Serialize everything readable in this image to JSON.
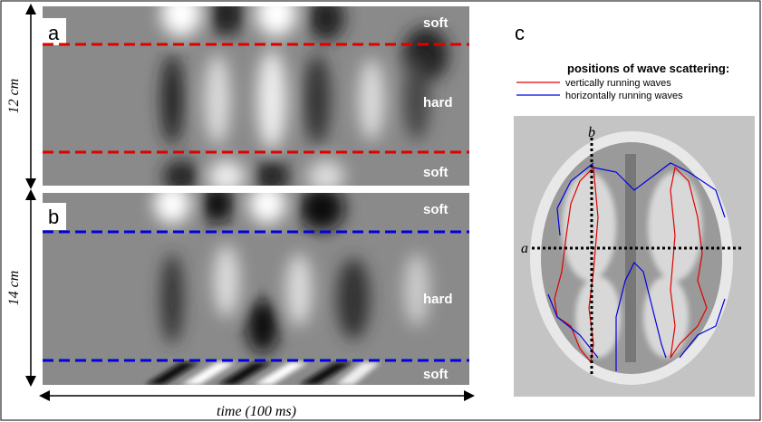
{
  "panels": [
    {
      "label": "a",
      "size_label": "12 cm",
      "regions": [
        "soft",
        "hard",
        "soft"
      ]
    },
    {
      "label": "b",
      "size_label": "14 cm",
      "regions": [
        "soft",
        "hard",
        "soft"
      ]
    }
  ],
  "time_axis": {
    "label": "time",
    "unit": "(100 ms)"
  },
  "panel_c": {
    "label": "c",
    "legend_title": "positions of wave scattering:",
    "legend": [
      "vertically running waves",
      "horizontally running waves"
    ],
    "axis_labels": [
      "a",
      "b"
    ]
  }
}
